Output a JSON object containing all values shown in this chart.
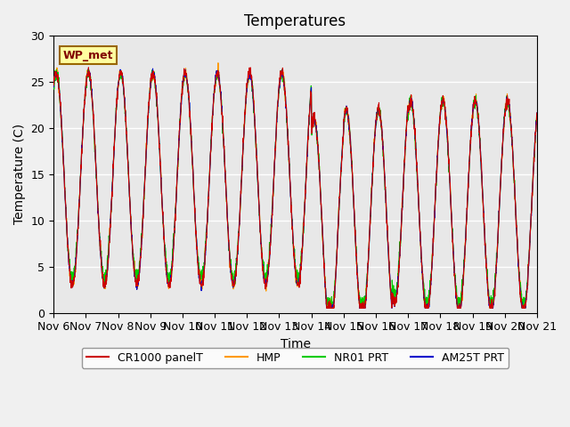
{
  "title": "Temperatures",
  "ylabel": "Temperature (C)",
  "xlabel": "Time",
  "station_label": "WP_met",
  "x_tick_labels": [
    "Nov 6",
    "Nov 7",
    "Nov 8",
    "Nov 9",
    "Nov 10",
    "Nov 11",
    "Nov 12",
    "Nov 13",
    "Nov 14",
    "Nov 15",
    "Nov 16",
    "Nov 17",
    "Nov 18",
    "Nov 19",
    "Nov 20",
    "Nov 21"
  ],
  "ylim": [
    0,
    30
  ],
  "xlim": [
    0,
    15
  ],
  "legend_entries": [
    "CR1000 panelT",
    "HMP",
    "NR01 PRT",
    "AM25T PRT"
  ],
  "legend_colors": [
    "#cc0000",
    "#ff9900",
    "#00cc00",
    "#0000cc"
  ],
  "background_color": "#e8e8e8",
  "grid_color": "#ffffff",
  "title_fontsize": 12,
  "label_fontsize": 10,
  "tick_fontsize": 9
}
